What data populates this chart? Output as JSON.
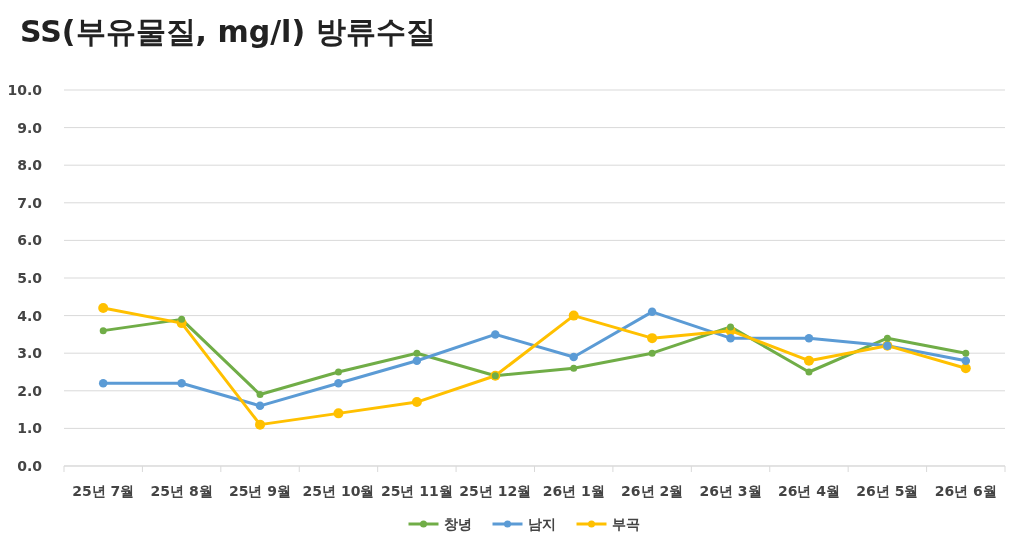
{
  "chart_data": {
    "type": "line",
    "title": "SS(부유물질, mg/l) 방류수질",
    "categories": [
      "25년 7월",
      "25년 8월",
      "25년 9월",
      "25년 10월",
      "25년 11월",
      "25년 12월",
      "26년 1월",
      "26년 2월",
      "26년 3월",
      "26년 4월",
      "26년 5월",
      "26년 6월"
    ],
    "series": [
      {
        "name": "창녕",
        "color": "#70ad47",
        "values": [
          3.6,
          3.9,
          1.9,
          2.5,
          3.0,
          2.4,
          2.6,
          3.0,
          3.7,
          2.5,
          3.4,
          3.0
        ]
      },
      {
        "name": "남지",
        "color": "#5b9bd5",
        "values": [
          2.2,
          2.2,
          1.6,
          2.2,
          2.8,
          3.5,
          2.9,
          4.1,
          3.4,
          3.4,
          3.2,
          2.8
        ]
      },
      {
        "name": "부곡",
        "color": "#ffc000",
        "values": [
          4.2,
          3.8,
          1.1,
          1.4,
          1.7,
          2.4,
          4.0,
          3.4,
          3.6,
          2.8,
          3.2,
          2.6
        ]
      }
    ],
    "ylim": [
      0,
      10
    ],
    "yticks": [
      {
        "value": 0,
        "label": "0.0"
      },
      {
        "value": 1,
        "label": "1.0"
      },
      {
        "value": 2,
        "label": "2.0"
      },
      {
        "value": 3,
        "label": "3.0"
      },
      {
        "value": 4,
        "label": "4.0"
      },
      {
        "value": 5,
        "label": "5.0"
      },
      {
        "value": 6,
        "label": "6.0"
      },
      {
        "value": 7,
        "label": "7.0"
      },
      {
        "value": 8,
        "label": "8.0"
      },
      {
        "value": 9,
        "label": "9.0"
      },
      {
        "value": 10,
        "label": "10.0"
      }
    ],
    "grid": "y",
    "legend": "bottom",
    "marker": "circle",
    "line_style": "solid"
  }
}
